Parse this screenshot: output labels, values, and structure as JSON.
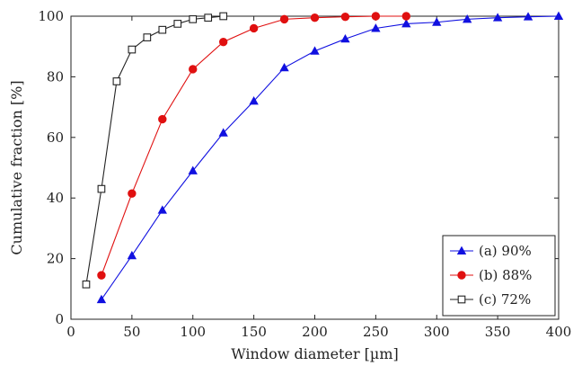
{
  "chart_data": {
    "type": "line",
    "title": "",
    "xlabel": "Window diameter [µm]",
    "ylabel": "Cumulative fraction [%]",
    "xlim": [
      0,
      400
    ],
    "ylim": [
      0,
      100
    ],
    "xticks": [
      0,
      50,
      100,
      150,
      200,
      250,
      300,
      350,
      400
    ],
    "yticks": [
      0,
      20,
      40,
      60,
      80,
      100
    ],
    "grid": false,
    "legend_position": "bottom-right",
    "series": [
      {
        "name": "(a) 90%",
        "color": "#1010e0",
        "marker": "triangle",
        "x": [
          25,
          50,
          75,
          100,
          125,
          150,
          175,
          200,
          225,
          250,
          275,
          300,
          325,
          350,
          375,
          400
        ],
        "y": [
          6.5,
          21,
          36,
          49,
          61.5,
          72,
          83,
          88.5,
          92.5,
          96,
          97.5,
          98,
          99,
          99.5,
          99.8,
          100
        ]
      },
      {
        "name": "(b) 88%",
        "color": "#e01010",
        "marker": "circle",
        "x": [
          25,
          50,
          75,
          100,
          125,
          150,
          175,
          200,
          225,
          250,
          275
        ],
        "y": [
          14.5,
          41.5,
          66,
          82.5,
          91.5,
          96,
          99,
          99.5,
          99.8,
          100,
          100
        ]
      },
      {
        "name": "(c) 72%",
        "color": "#222222",
        "marker": "square-open",
        "x": [
          12.5,
          25,
          37.5,
          50,
          62.5,
          75,
          87.5,
          100,
          112.5,
          125
        ],
        "y": [
          11.5,
          43,
          78.5,
          89,
          93,
          95.5,
          97.5,
          99,
          99.5,
          100
        ]
      }
    ]
  }
}
